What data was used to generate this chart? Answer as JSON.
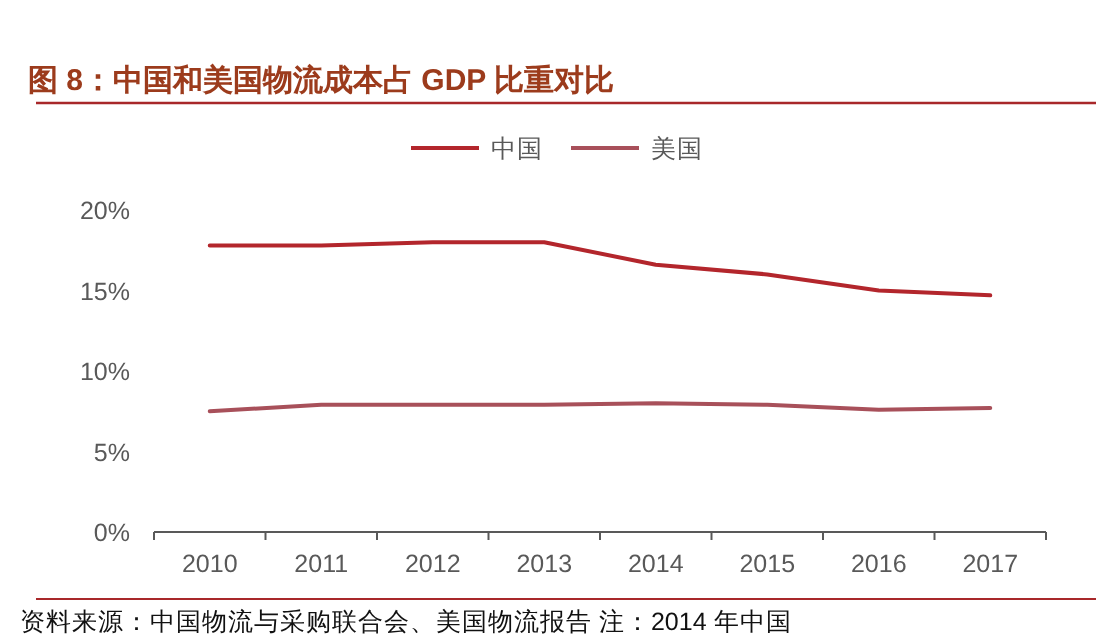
{
  "chart_data": {
    "type": "line",
    "title": "图 8：中国和美国物流成本占 GDP 比重对比",
    "categories": [
      "2010",
      "2011",
      "2012",
      "2013",
      "2014",
      "2015",
      "2016",
      "2017"
    ],
    "series": [
      {
        "name": "中国",
        "color": "#b3262c",
        "values": [
          17.8,
          17.8,
          18.0,
          18.0,
          16.6,
          16.0,
          15.0,
          14.7
        ]
      },
      {
        "name": "美国",
        "color": "#a8505a",
        "values": [
          7.5,
          7.9,
          7.9,
          7.9,
          8.0,
          7.9,
          7.6,
          7.7
        ]
      }
    ],
    "ylim": [
      0,
      20
    ],
    "yticks": [
      {
        "value": 0,
        "label": "0%"
      },
      {
        "value": 5,
        "label": "5%"
      },
      {
        "value": 10,
        "label": "10%"
      },
      {
        "value": 15,
        "label": "15%"
      },
      {
        "value": 20,
        "label": "20%"
      }
    ],
    "legend": "top",
    "grid": false,
    "marker": "none",
    "line_style": "solid",
    "annotations": [
      "资料来源：中国物流与采购联合会、美国物流报告 注：2014 年中国"
    ]
  }
}
